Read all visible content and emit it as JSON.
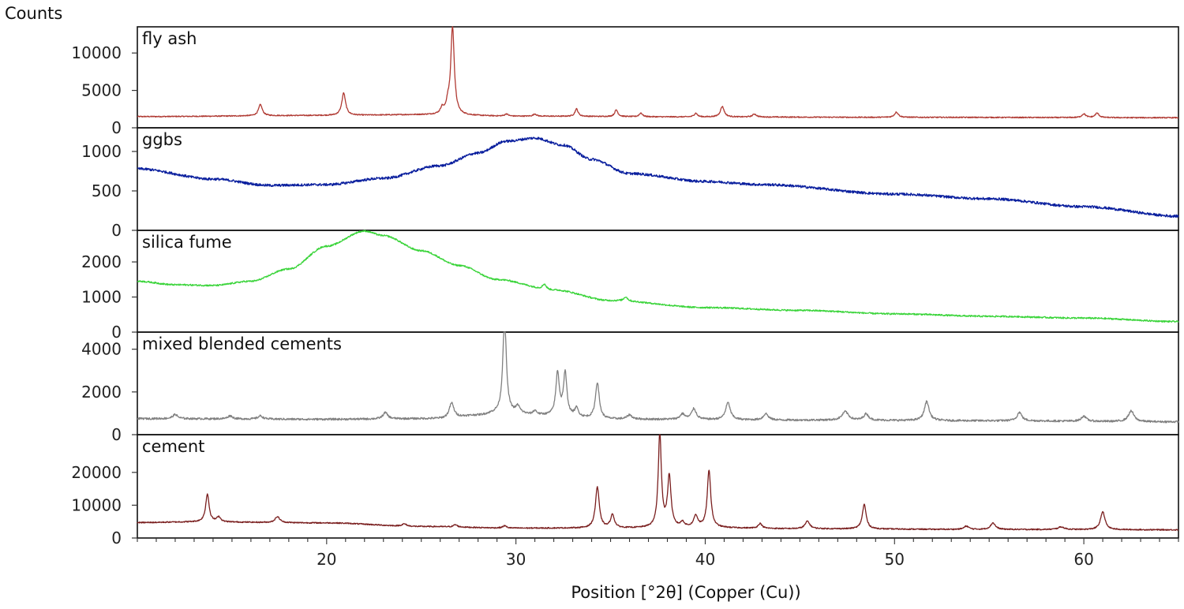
{
  "chart_data": {
    "type": "line",
    "ylabel": "Counts",
    "xlabel": "Position [°2θ] (Copper (Cu))",
    "xlim": [
      10,
      65
    ],
    "x_ticks": [
      20,
      30,
      40,
      50,
      60
    ],
    "grid": false,
    "legend": "none",
    "panels": [
      {
        "name": "fly ash",
        "color": "#b03a33",
        "ylim": [
          0,
          13500
        ],
        "y_ticks": [
          0,
          5000,
          10000
        ],
        "baseline": [
          [
            10,
            1500
          ],
          [
            20,
            1650
          ],
          [
            25,
            1750
          ],
          [
            30,
            1550
          ],
          [
            40,
            1450
          ],
          [
            50,
            1400
          ],
          [
            65,
            1350
          ]
        ],
        "peaks": [
          [
            16.5,
            1500,
            0.12
          ],
          [
            20.9,
            3000,
            0.12
          ],
          [
            26.1,
            800,
            0.1
          ],
          [
            26.4,
            1200,
            0.1
          ],
          [
            26.65,
            11800,
            0.11
          ],
          [
            29.5,
            300,
            0.1
          ],
          [
            31.0,
            300,
            0.1
          ],
          [
            33.2,
            1000,
            0.1
          ],
          [
            35.3,
            900,
            0.1
          ],
          [
            36.6,
            500,
            0.1
          ],
          [
            39.5,
            500,
            0.1
          ],
          [
            40.9,
            1400,
            0.12
          ],
          [
            42.6,
            400,
            0.12
          ],
          [
            50.1,
            700,
            0.12
          ],
          [
            60.0,
            500,
            0.12
          ],
          [
            60.7,
            600,
            0.12
          ]
        ],
        "noise": 70
      },
      {
        "name": "ggbs",
        "color": "#0a1f9e",
        "ylim": [
          0,
          1300
        ],
        "y_ticks": [
          0,
          500,
          1000
        ],
        "baseline": [
          [
            10,
            780
          ],
          [
            14,
            650
          ],
          [
            17,
            570
          ],
          [
            20,
            580
          ],
          [
            23,
            660
          ],
          [
            26,
            820
          ],
          [
            28,
            980
          ],
          [
            29.5,
            1130
          ],
          [
            31,
            1170
          ],
          [
            32.5,
            1080
          ],
          [
            34,
            900
          ],
          [
            36,
            720
          ],
          [
            40,
            620
          ],
          [
            43,
            580
          ],
          [
            50,
            460
          ],
          [
            55,
            400
          ],
          [
            60,
            300
          ],
          [
            65,
            180
          ]
        ],
        "peaks": [],
        "noise": 16
      },
      {
        "name": "silica fume",
        "color": "#3ad43a",
        "ylim": [
          0,
          2900
        ],
        "y_ticks": [
          0,
          1000,
          2000
        ],
        "baseline": [
          [
            10,
            1450
          ],
          [
            12,
            1350
          ],
          [
            14,
            1330
          ],
          [
            16,
            1450
          ],
          [
            18,
            1800
          ],
          [
            20,
            2450
          ],
          [
            22,
            2880
          ],
          [
            23,
            2750
          ],
          [
            25,
            2320
          ],
          [
            27,
            1900
          ],
          [
            29,
            1500
          ],
          [
            32,
            1200
          ],
          [
            35,
            900
          ],
          [
            40,
            700
          ],
          [
            45,
            620
          ],
          [
            50,
            520
          ],
          [
            55,
            450
          ],
          [
            60,
            400
          ],
          [
            65,
            300
          ]
        ],
        "peaks": [
          [
            31.5,
            150,
            0.12
          ],
          [
            35.8,
            120,
            0.12
          ]
        ],
        "noise": 22
      },
      {
        "name": "mixed blended cements",
        "color": "#808080",
        "ylim": [
          0,
          4800
        ],
        "y_ticks": [
          0,
          2000,
          4000
        ],
        "baseline": [
          [
            10,
            750
          ],
          [
            20,
            720
          ],
          [
            26,
            750
          ],
          [
            28,
            900
          ],
          [
            29,
            1000
          ],
          [
            30,
            1000
          ],
          [
            31,
            900
          ],
          [
            35,
            720
          ],
          [
            45,
            680
          ],
          [
            55,
            650
          ],
          [
            65,
            600
          ]
        ],
        "peaks": [
          [
            12.0,
            200,
            0.15
          ],
          [
            14.9,
            150,
            0.15
          ],
          [
            16.5,
            150,
            0.15
          ],
          [
            23.1,
            300,
            0.15
          ],
          [
            26.6,
            700,
            0.15
          ],
          [
            29.4,
            4500,
            0.11
          ],
          [
            30.1,
            300,
            0.12
          ],
          [
            31.0,
            200,
            0.12
          ],
          [
            32.2,
            2000,
            0.11
          ],
          [
            32.6,
            2000,
            0.11
          ],
          [
            33.2,
            400,
            0.12
          ],
          [
            34.3,
            1700,
            0.12
          ],
          [
            36.0,
            200,
            0.15
          ],
          [
            38.8,
            250,
            0.15
          ],
          [
            39.4,
            500,
            0.15
          ],
          [
            41.2,
            800,
            0.15
          ],
          [
            43.2,
            300,
            0.15
          ],
          [
            47.4,
            400,
            0.2
          ],
          [
            48.5,
            300,
            0.15
          ],
          [
            51.7,
            900,
            0.15
          ],
          [
            56.6,
            400,
            0.15
          ],
          [
            60.0,
            250,
            0.15
          ],
          [
            62.5,
            500,
            0.18
          ]
        ],
        "noise": 45
      },
      {
        "name": "cement",
        "color": "#7a1f1f",
        "ylim": [
          0,
          31500
        ],
        "y_ticks": [
          0,
          10000,
          20000
        ],
        "baseline": [
          [
            10,
            4700
          ],
          [
            13,
            4900
          ],
          [
            20,
            4600
          ],
          [
            25,
            3500
          ],
          [
            30,
            3000
          ],
          [
            35,
            3000
          ],
          [
            40,
            3100
          ],
          [
            45,
            2800
          ],
          [
            55,
            2600
          ],
          [
            65,
            2500
          ]
        ],
        "peaks": [
          [
            13.7,
            8500,
            0.11
          ],
          [
            14.3,
            1500,
            0.12
          ],
          [
            17.4,
            1800,
            0.15
          ],
          [
            24.1,
            700,
            0.15
          ],
          [
            26.8,
            700,
            0.12
          ],
          [
            29.4,
            700,
            0.12
          ],
          [
            34.3,
            12500,
            0.12
          ],
          [
            35.1,
            4000,
            0.12
          ],
          [
            37.6,
            28500,
            0.1
          ],
          [
            38.1,
            15500,
            0.11
          ],
          [
            38.8,
            1500,
            0.12
          ],
          [
            39.5,
            3500,
            0.13
          ],
          [
            40.2,
            17500,
            0.11
          ],
          [
            42.9,
            1500,
            0.12
          ],
          [
            45.4,
            2300,
            0.15
          ],
          [
            48.4,
            7500,
            0.12
          ],
          [
            53.8,
            1000,
            0.15
          ],
          [
            55.2,
            2000,
            0.15
          ],
          [
            58.8,
            800,
            0.2
          ],
          [
            61.0,
            5500,
            0.14
          ]
        ],
        "noise": 180
      }
    ]
  }
}
